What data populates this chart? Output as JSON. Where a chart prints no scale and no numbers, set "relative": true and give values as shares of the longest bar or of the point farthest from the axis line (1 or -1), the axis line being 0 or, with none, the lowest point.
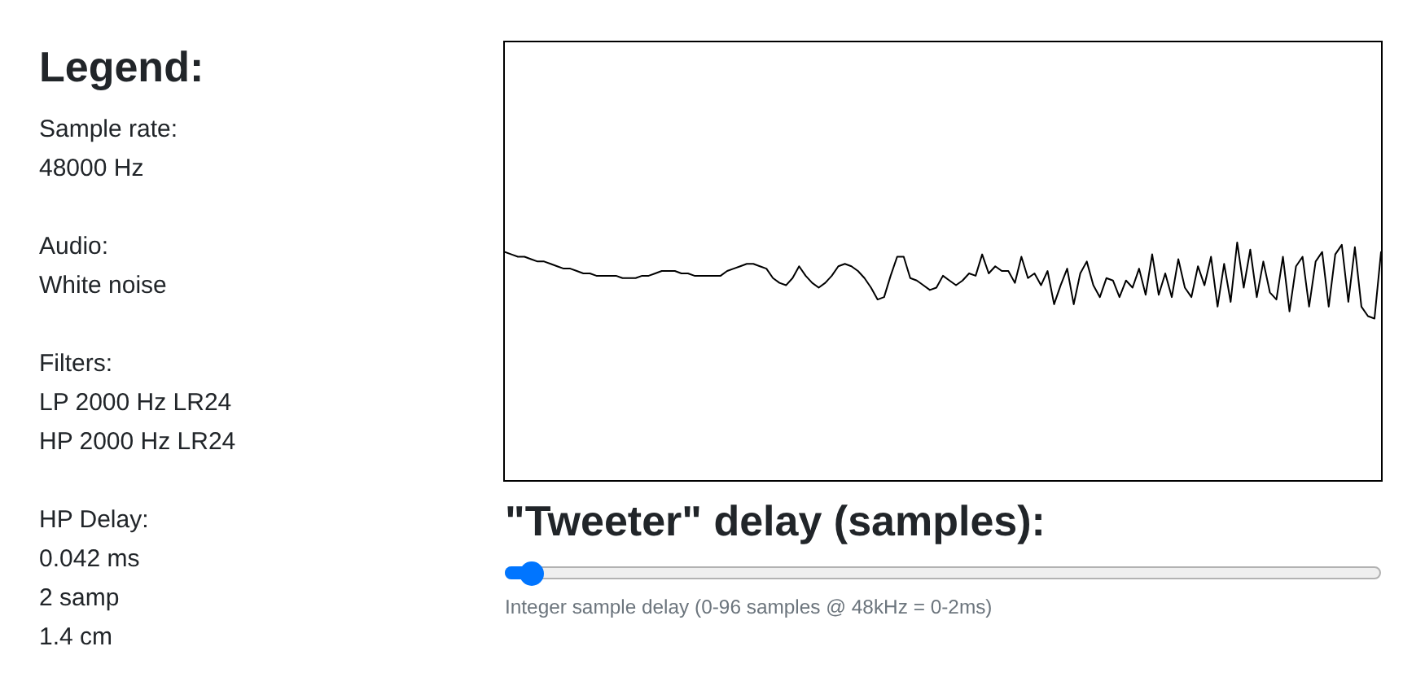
{
  "chart_data": [
    {
      "type": "other",
      "title": "Legend:",
      "annotations": [
        "Sample rate:\n48000 Hz",
        "Audio:\nWhite noise",
        "Filters:\nLP 2000 Hz LR24\nHP 2000 Hz LR24",
        "HP Delay:\n0.042 ms\n2 samp\n1.4 cm"
      ]
    },
    {
      "type": "line",
      "relative": true,
      "color": "#000000",
      "categories": [
        null,
        null,
        null,
        null,
        null,
        null,
        null,
        null,
        null,
        null,
        null,
        null,
        null,
        null,
        null,
        null,
        null,
        null,
        null,
        null,
        null,
        null,
        null,
        null,
        null,
        null,
        null,
        null,
        null,
        null,
        null,
        null,
        null,
        null,
        null,
        null,
        null,
        null,
        null,
        null,
        null,
        null,
        null,
        null,
        null,
        null,
        null,
        null,
        null,
        null,
        null,
        null,
        null,
        null,
        null,
        null,
        null,
        null,
        null,
        null,
        null,
        null,
        null,
        null,
        null,
        null,
        null,
        null,
        null,
        null,
        null,
        null,
        null,
        null,
        null,
        null,
        null,
        null,
        null,
        null,
        null,
        null,
        null,
        null,
        null,
        null,
        null,
        null,
        null,
        null,
        null,
        null,
        null,
        null,
        null,
        null,
        null,
        null,
        null,
        null,
        null,
        null,
        null,
        null,
        null,
        null,
        null,
        null,
        null,
        null,
        null,
        null,
        null,
        null,
        null,
        null,
        null,
        null,
        null,
        null,
        null,
        null,
        null,
        null,
        null,
        null,
        null,
        null,
        null,
        null,
        null,
        null,
        null,
        null,
        null
      ],
      "values": [
        0.96,
        0.95,
        0.94,
        0.94,
        0.93,
        0.92,
        0.92,
        0.91,
        0.9,
        0.89,
        0.89,
        0.88,
        0.87,
        0.87,
        0.86,
        0.86,
        0.86,
        0.86,
        0.85,
        0.85,
        0.85,
        0.86,
        0.86,
        0.87,
        0.88,
        0.88,
        0.88,
        0.87,
        0.87,
        0.86,
        0.86,
        0.86,
        0.86,
        0.86,
        0.88,
        0.89,
        0.9,
        0.91,
        0.91,
        0.9,
        0.89,
        0.85,
        0.83,
        0.82,
        0.85,
        0.9,
        0.86,
        0.83,
        0.81,
        0.83,
        0.86,
        0.9,
        0.91,
        0.9,
        0.88,
        0.85,
        0.81,
        0.76,
        0.77,
        0.86,
        0.94,
        0.94,
        0.85,
        0.84,
        0.82,
        0.8,
        0.81,
        0.86,
        0.84,
        0.82,
        0.84,
        0.87,
        0.86,
        0.95,
        0.87,
        0.9,
        0.88,
        0.88,
        0.83,
        0.94,
        0.85,
        0.87,
        0.82,
        0.88,
        0.74,
        0.82,
        0.89,
        0.74,
        0.87,
        0.92,
        0.82,
        0.77,
        0.85,
        0.84,
        0.77,
        0.84,
        0.81,
        0.89,
        0.78,
        0.95,
        0.78,
        0.87,
        0.77,
        0.93,
        0.81,
        0.77,
        0.9,
        0.82,
        0.94,
        0.73,
        0.91,
        0.75,
        1.0,
        0.81,
        0.97,
        0.77,
        0.92,
        0.79,
        0.76,
        0.94,
        0.71,
        0.9,
        0.94,
        0.73,
        0.92,
        0.96,
        0.73,
        0.95,
        0.99,
        0.75,
        0.98,
        0.73,
        0.69,
        0.68,
        0.96
      ],
      "annotations": [
        "\"Tweeter\" delay (samples):",
        "Integer sample delay (0-96 samples @ 48kHz = 0-2ms)"
      ]
    }
  ]
}
